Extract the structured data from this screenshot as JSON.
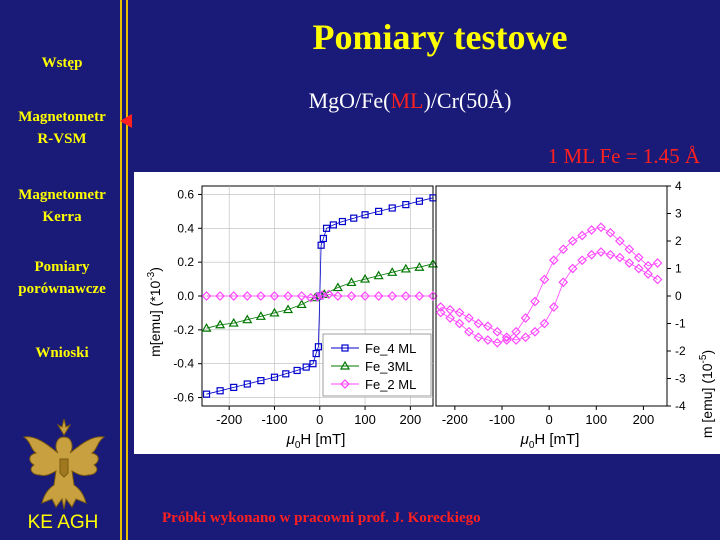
{
  "title": "Pomiary testowe",
  "subtitle": {
    "pre": "MgO/Fe(",
    "highlight": "ML",
    "post": ")/Cr(50Å)"
  },
  "ml_note": "1 ML Fe = 1.45 Å",
  "sidebar": {
    "items": [
      {
        "line1": "Wstęp",
        "line2": ""
      },
      {
        "line1": "Magnetometr",
        "line2": "R-VSM"
      },
      {
        "line1": "Magnetometr",
        "line2": "Kerra"
      },
      {
        "line1": "Pomiary",
        "line2": "porównawcze"
      },
      {
        "line1": "Wnioski",
        "line2": ""
      }
    ],
    "footer": "KE AGH",
    "active_marker_color": "#ff2020"
  },
  "footer_credit": "Próbki wykonano w pracowni prof. J. Koreckiego",
  "colors": {
    "background": "#1a1a78",
    "nav_text": "#ffff00",
    "accent": "#ff2020"
  },
  "chart_data": [
    {
      "type": "scatter",
      "xlabel_pre": "μ",
      "xlabel_sub": "0",
      "xlabel_post": "H [mT]",
      "ylabel": "m[emu] (*10",
      "ylabel_sup": "-3",
      "ylabel_post": ")",
      "xlim": [
        -260,
        250
      ],
      "ylim": [
        -0.65,
        0.65
      ],
      "xticks": [
        -200,
        -100,
        0,
        100,
        200
      ],
      "yticks": [
        -0.6,
        -0.4,
        -0.2,
        0.0,
        0.2,
        0.4,
        0.6
      ],
      "ytick_labels": [
        "-0.6",
        "-0.4",
        "-0.2",
        "0.0",
        "0.2",
        "0.4",
        "0.6"
      ],
      "grid": true,
      "legend_position": "bottom-right",
      "series": [
        {
          "name": "Fe_4 ML",
          "color": "#0000cc",
          "marker": "square",
          "x": [
            -250,
            -220,
            -190,
            -160,
            -130,
            -100,
            -75,
            -50,
            -30,
            -15,
            -8,
            -3,
            0,
            3,
            8,
            15,
            30,
            50,
            75,
            100,
            130,
            160,
            190,
            220,
            250
          ],
          "y": [
            -0.58,
            -0.56,
            -0.54,
            -0.52,
            -0.5,
            -0.48,
            -0.46,
            -0.44,
            -0.42,
            -0.4,
            -0.34,
            -0.3,
            0.0,
            0.3,
            0.34,
            0.4,
            0.42,
            0.44,
            0.46,
            0.48,
            0.5,
            0.52,
            0.54,
            0.56,
            0.58
          ]
        },
        {
          "name": "Fe_3ML",
          "color": "#007700",
          "marker": "triangle",
          "x": [
            -250,
            -220,
            -190,
            -160,
            -130,
            -100,
            -70,
            -40,
            -10,
            10,
            40,
            70,
            100,
            130,
            160,
            190,
            220,
            250
          ],
          "y": [
            -0.19,
            -0.17,
            -0.16,
            -0.14,
            -0.12,
            -0.1,
            -0.08,
            -0.05,
            -0.01,
            0.01,
            0.05,
            0.08,
            0.1,
            0.12,
            0.14,
            0.16,
            0.17,
            0.19
          ]
        },
        {
          "name": "Fe_2 ML",
          "color": "#ff44ff",
          "marker": "diamond",
          "x": [
            -250,
            -220,
            -190,
            -160,
            -130,
            -100,
            -70,
            -40,
            -20,
            -5,
            5,
            20,
            40,
            70,
            100,
            130,
            160,
            190,
            220,
            250
          ],
          "y": [
            0.0,
            0.0,
            0.0,
            0.0,
            0.0,
            0.0,
            0.0,
            0.0,
            -0.01,
            -0.005,
            0.005,
            0.01,
            0.0,
            0.0,
            0.0,
            0.0,
            0.0,
            0.0,
            0.0,
            0.0
          ]
        }
      ]
    },
    {
      "type": "line",
      "xlabel_pre": "μ",
      "xlabel_sub": "0",
      "xlabel_post": "H [mT]",
      "ylabel": "m [emu]  (10",
      "ylabel_sup": "-5",
      "ylabel_post": ")",
      "xlim": [
        -240,
        250
      ],
      "ylim": [
        -4,
        4
      ],
      "xticks": [
        -200,
        -100,
        0,
        100,
        200
      ],
      "yticks": [
        -4,
        -3,
        -2,
        -1,
        0,
        1,
        2,
        3,
        4
      ],
      "ytick_labels": [
        "-4",
        "-3",
        "-2",
        "-1",
        "0",
        "1",
        "2",
        "3",
        "4"
      ],
      "grid": false,
      "series": [
        {
          "name": "Fe_2 ML",
          "color": "#ff44ff",
          "marker": "diamond",
          "x": [
            -230,
            -210,
            -190,
            -170,
            -150,
            -130,
            -110,
            -90,
            -70,
            -50,
            -30,
            -10,
            10,
            30,
            50,
            70,
            90,
            110,
            130,
            150,
            170,
            190,
            210,
            230
          ],
          "y": [
            -0.6,
            -0.8,
            -1.0,
            -1.3,
            -1.5,
            -1.6,
            -1.7,
            -1.6,
            -1.3,
            -0.8,
            -0.2,
            0.6,
            1.3,
            1.7,
            2.0,
            2.2,
            2.4,
            2.5,
            2.3,
            2.0,
            1.7,
            1.4,
            1.1,
            1.2
          ]
        },
        {
          "name": "Fe_2 ML",
          "color": "#ff44ff",
          "marker": "diamond",
          "x": [
            230,
            210,
            190,
            170,
            150,
            130,
            110,
            90,
            70,
            50,
            30,
            10,
            -10,
            -30,
            -50,
            -70,
            -90,
            -110,
            -130,
            -150,
            -170,
            -190,
            -210,
            -230
          ],
          "y": [
            0.6,
            0.8,
            1.0,
            1.2,
            1.4,
            1.5,
            1.6,
            1.5,
            1.3,
            1.0,
            0.5,
            -0.4,
            -1.0,
            -1.3,
            -1.5,
            -1.6,
            -1.5,
            -1.3,
            -1.1,
            -1.0,
            -0.8,
            -0.6,
            -0.5,
            -0.4
          ]
        }
      ]
    }
  ]
}
